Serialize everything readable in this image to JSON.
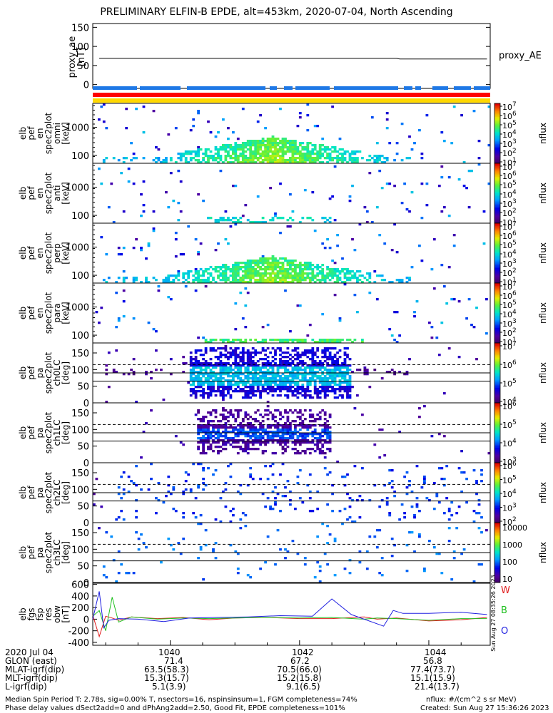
{
  "title": "PRELIMINARY ELFIN-B EPDE, alt=453km, 2020-07-04, North Ascending",
  "time_axis": {
    "ticks": [
      "1040",
      "1042",
      "1044"
    ],
    "date_label": "2020 Jul 04"
  },
  "ephemeris": {
    "rows": [
      {
        "label": "GLON (east)",
        "values": [
          "71.4",
          "67.2",
          "56.8"
        ]
      },
      {
        "label": "MLAT-igrf(dip)",
        "values": [
          "63.5(58.3)",
          "70.5(66.0)",
          "77.4(73.7)"
        ]
      },
      {
        "label": "MLT-igrf(dip)",
        "values": [
          "15.3(15.7)",
          "15.2(15.8)",
          "15.1(15.9)"
        ]
      },
      {
        "label": "L-igrf(dip)",
        "values": [
          "5.1(3.9)",
          "9.1(6.5)",
          "21.4(13.7)"
        ]
      }
    ]
  },
  "footer": {
    "line1": "Median Spin Period T: 2.78s, sig=0.00% T, nsectors=16, nspinsinsum=1, FGM completeness=74%",
    "line2": "Phase delay values dSect2add=0 and dPhAng2add=2.50, Good Fit, EPDE completeness=101%",
    "units": "nflux: #/(cm^2 s sr MeV)",
    "created": "Created: Sun Aug 27 15:36:26 2023",
    "side_stamp": "Sun Aug 27 08:35:26 2023"
  },
  "colors": {
    "status_blue": "#1e78e6",
    "status_red": "#ff0000",
    "status_yellow": "#ffd800",
    "w": "#e02020",
    "b": "#20c020",
    "o": "#2020e0"
  },
  "chart_data": [
    {
      "type": "line",
      "ylabel": [
        "proxy_ae",
        "[nT]"
      ],
      "yticks": [
        "150",
        "100",
        "50",
        "0"
      ],
      "ylim": [
        -10,
        160
      ],
      "legend": "proxy_AE",
      "x": [
        1038.9,
        1043.5,
        1043.55,
        1044.9
      ],
      "y": [
        69,
        69,
        67,
        67
      ]
    },
    {
      "type": "heatmap",
      "ylabel": [
        "elb",
        "pef",
        "en",
        "spec2plot",
        "omni",
        "[keV]"
      ],
      "yticks": [
        "1000",
        "100"
      ],
      "zlabel": "nflux",
      "ztick_exponents": [
        "1",
        "2",
        "3",
        "4",
        "5",
        "6",
        "7"
      ]
    },
    {
      "type": "heatmap",
      "ylabel": [
        "elb",
        "pef",
        "en",
        "spec2plot",
        "anti",
        "[keV]"
      ],
      "yticks": [
        "1000",
        "100"
      ],
      "zlabel": "nflux",
      "ztick_exponents": [
        "1",
        "2",
        "3",
        "4",
        "5",
        "6",
        "7"
      ]
    },
    {
      "type": "heatmap",
      "ylabel": [
        "elb",
        "pef",
        "en",
        "spec2plot",
        "perp",
        "[keV]"
      ],
      "yticks": [
        "1000",
        "100"
      ],
      "zlabel": "nflux",
      "ztick_exponents": [
        "1",
        "2",
        "3",
        "4",
        "5",
        "6",
        "7"
      ]
    },
    {
      "type": "heatmap",
      "ylabel": [
        "elb",
        "pef",
        "en",
        "spec2plot",
        "para",
        "[keV]"
      ],
      "yticks": [
        "1000",
        "100"
      ],
      "zlabel": "nflux",
      "ztick_exponents": [
        "1",
        "2",
        "3",
        "4",
        "5",
        "6",
        "7"
      ]
    },
    {
      "type": "heatmap",
      "ylabel": [
        "elb",
        "pef",
        "pa",
        "spec2plot",
        "ch0LC",
        "[deg]"
      ],
      "yticks": [
        "150",
        "100",
        "50",
        "0"
      ],
      "ylim": [
        0,
        180
      ],
      "zlabel": "nflux",
      "ztick_exponents": [
        "4",
        "5",
        "6",
        "7"
      ]
    },
    {
      "type": "heatmap",
      "ylabel": [
        "elb",
        "pef",
        "pa",
        "spec2plot",
        "ch1LC",
        "[deg]"
      ],
      "yticks": [
        "150",
        "100",
        "50",
        "0"
      ],
      "ylim": [
        0,
        180
      ],
      "zlabel": "nflux",
      "ztick_exponents": [
        "3",
        "4",
        "5",
        "6"
      ]
    },
    {
      "type": "heatmap",
      "ylabel": [
        "elb",
        "pef",
        "pa",
        "spec2plot",
        "ch2LC",
        "[deg]"
      ],
      "yticks": [
        "150",
        "100",
        "50",
        "0"
      ],
      "ylim": [
        0,
        180
      ],
      "zlabel": "nflux",
      "ztick_exponents": [
        "2",
        "3",
        "4",
        "5",
        "6"
      ]
    },
    {
      "type": "heatmap",
      "ylabel": [
        "elb",
        "pef",
        "pa",
        "spec2plot",
        "ch3LC",
        "[deg]"
      ],
      "yticks": [
        "150",
        "100",
        "50",
        "0"
      ],
      "ylim": [
        0,
        180
      ],
      "zlabel": "nflux",
      "zticks": [
        "10000",
        "1000",
        "100",
        "10"
      ]
    },
    {
      "type": "line",
      "ylabel": [
        "elb",
        "fgs",
        "fsp",
        "res",
        "obw",
        "[nT]"
      ],
      "yticks": [
        "600",
        "400",
        "200",
        "0",
        "-200",
        "-400"
      ],
      "ylim": [
        -450,
        620
      ],
      "legend": [
        "W",
        "B",
        "O"
      ],
      "series": [
        {
          "name": "W",
          "x": [
            1038.8,
            1038.9,
            1039.0,
            1039.1,
            1039.2,
            1039.4,
            1039.8,
            1040.2,
            1040.6,
            1041.0,
            1041.5,
            1042.0,
            1042.5,
            1043.0,
            1043.2,
            1043.5,
            1044.0,
            1044.5,
            1044.9
          ],
          "y": [
            70,
            -300,
            50,
            20,
            -20,
            40,
            10,
            30,
            -10,
            20,
            30,
            10,
            10,
            40,
            0,
            20,
            -30,
            -10,
            30
          ]
        },
        {
          "name": "B",
          "x": [
            1038.8,
            1038.9,
            1039.0,
            1039.1,
            1039.2,
            1039.4,
            1039.8,
            1040.2,
            1040.6,
            1041.0,
            1041.5,
            1042.0,
            1042.5,
            1043.0,
            1043.2,
            1043.5,
            1044.0,
            1044.5,
            1044.9
          ],
          "y": [
            50,
            150,
            -200,
            380,
            -50,
            40,
            0,
            20,
            10,
            20,
            30,
            20,
            30,
            0,
            20,
            10,
            -20,
            10,
            10
          ]
        },
        {
          "name": "O",
          "x": [
            1038.8,
            1038.9,
            1038.97,
            1039.05,
            1039.2,
            1039.5,
            1039.9,
            1040.3,
            1040.7,
            1041.2,
            1041.7,
            1042.2,
            1042.5,
            1042.8,
            1043.3,
            1043.45,
            1043.6,
            1044.0,
            1044.5,
            1044.9
          ],
          "y": [
            0,
            480,
            -150,
            -20,
            10,
            0,
            -40,
            20,
            30,
            40,
            60,
            50,
            350,
            80,
            -120,
            150,
            100,
            100,
            120,
            80
          ]
        }
      ]
    }
  ]
}
